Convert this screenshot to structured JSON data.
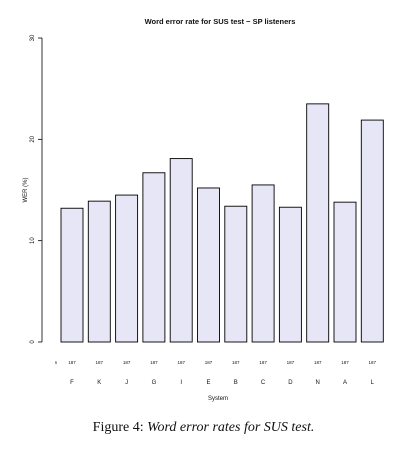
{
  "chart_data": {
    "type": "bar",
    "title": "Word error rate for SUS test − SP listeners",
    "xlabel": "System",
    "ylabel": "WER (%)",
    "ylim": [
      0,
      30
    ],
    "yticks": [
      0,
      10,
      20,
      30
    ],
    "count_label": "n",
    "categories": [
      "F",
      "K",
      "J",
      "G",
      "I",
      "E",
      "B",
      "C",
      "D",
      "N",
      "A",
      "L"
    ],
    "values": [
      13.2,
      13.9,
      14.5,
      16.7,
      18.1,
      15.2,
      13.4,
      15.5,
      13.3,
      23.5,
      13.8,
      21.9
    ],
    "counts": [
      "187",
      "187",
      "187",
      "187",
      "187",
      "187",
      "187",
      "187",
      "187",
      "187",
      "187",
      "187"
    ],
    "bar_color": "#e6e6f7",
    "bar_stroke": "#000000",
    "grid": false
  },
  "caption": {
    "prefix": "Figure 4:",
    "text": "Word error rates for SUS test."
  }
}
